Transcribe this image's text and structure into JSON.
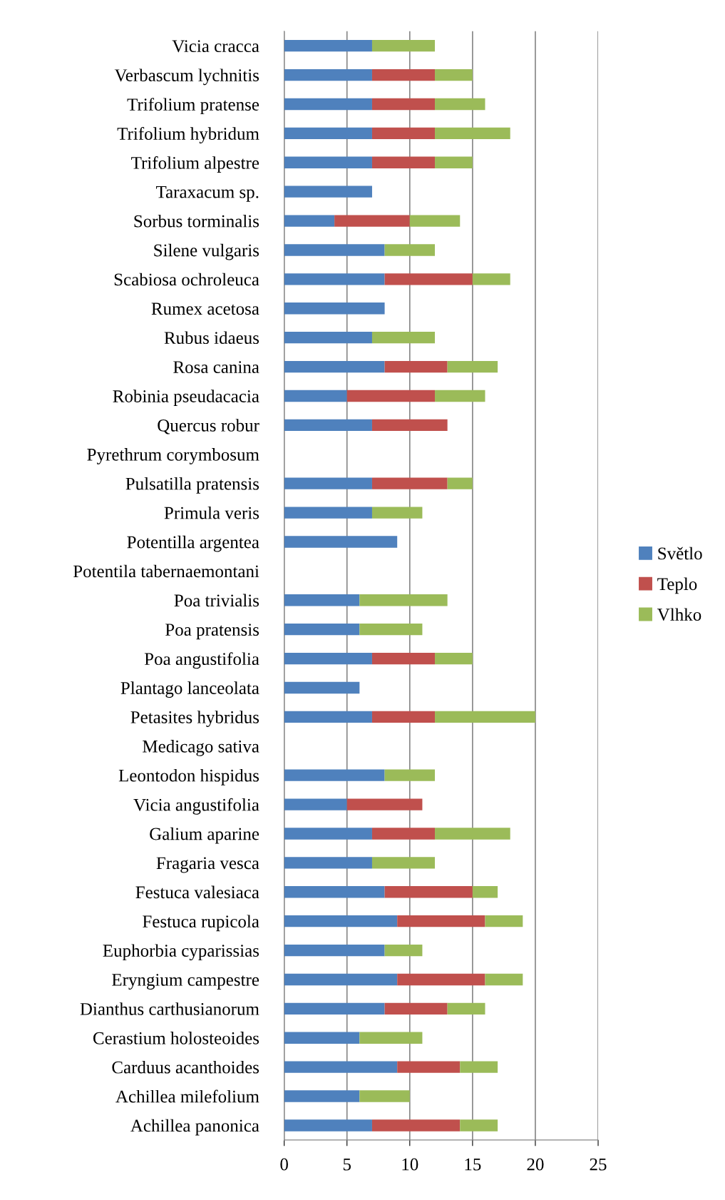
{
  "chart_data": {
    "type": "bar",
    "orientation": "horizontal",
    "stacked": true,
    "categories": [
      "Vicia cracca",
      "Verbascum lychnitis",
      "Trifolium pratense",
      "Trifolium hybridum",
      "Trifolium alpestre",
      "Taraxacum sp.",
      "Sorbus torminalis",
      "Silene vulgaris",
      "Scabiosa ochroleuca",
      "Rumex acetosa",
      "Rubus idaeus",
      "Rosa canina",
      "Robinia pseudacacia",
      "Quercus robur",
      "Pyrethrum corymbosum",
      "Pulsatilla pratensis",
      "Primula veris",
      "Potentilla argentea",
      "Potentila tabernaemontani",
      "Poa trivialis",
      "Poa pratensis",
      "Poa angustifolia",
      "Plantago lanceolata",
      "Petasites hybridus",
      "Medicago sativa",
      "Leontodon hispidus",
      "Vicia angustifolia",
      "Galium aparine",
      "Fragaria vesca",
      "Festuca valesiaca",
      "Festuca rupicola",
      "Euphorbia cyparissias",
      "Eryngium campestre",
      "Dianthus carthusianorum",
      "Cerastium holosteoides",
      "Carduus acanthoides",
      "Achillea milefolium",
      "Achillea panonica"
    ],
    "series": [
      {
        "name": "Světlo",
        "color": "#4f81bd",
        "values": [
          7,
          7,
          7,
          7,
          7,
          7,
          4,
          8,
          8,
          8,
          7,
          8,
          5,
          7,
          null,
          7,
          7,
          9,
          null,
          6,
          6,
          7,
          6,
          7,
          null,
          8,
          5,
          7,
          7,
          8,
          9,
          8,
          9,
          8,
          6,
          9,
          6,
          7
        ]
      },
      {
        "name": "Teplo",
        "color": "#c0504d",
        "values": [
          null,
          5,
          5,
          5,
          5,
          null,
          6,
          null,
          7,
          null,
          null,
          5,
          7,
          6,
          null,
          6,
          null,
          null,
          null,
          null,
          null,
          5,
          null,
          5,
          null,
          null,
          6,
          5,
          null,
          7,
          7,
          null,
          7,
          5,
          null,
          5,
          null,
          7
        ]
      },
      {
        "name": "Vlhko",
        "color": "#9bbb59",
        "values": [
          5,
          3,
          4,
          6,
          3,
          null,
          4,
          4,
          3,
          null,
          5,
          4,
          4,
          null,
          null,
          2,
          4,
          null,
          null,
          7,
          5,
          3,
          null,
          8,
          null,
          4,
          null,
          6,
          5,
          2,
          3,
          3,
          3,
          3,
          5,
          3,
          4,
          3
        ]
      }
    ],
    "xlim": [
      0,
      25
    ],
    "xticks": [
      0,
      5,
      10,
      15,
      20,
      25
    ],
    "grid": "x",
    "legend": "right"
  }
}
